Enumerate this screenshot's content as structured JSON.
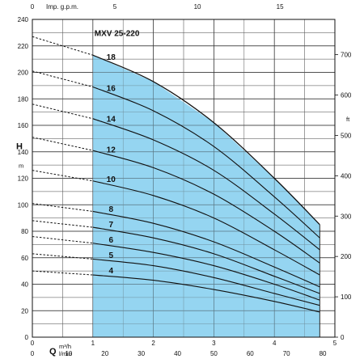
{
  "chart_data": {
    "type": "line",
    "title": "MXV 25-220",
    "x_flow_m3h": {
      "min": 0,
      "max": 5,
      "ticks": [
        0,
        1,
        2,
        3,
        4,
        5
      ]
    },
    "x_flow_lmin": {
      "ticks": [
        0,
        10,
        20,
        30,
        40,
        50,
        60,
        70,
        80
      ]
    },
    "x_flow_gpm": {
      "label": "Imp. g.p.m.",
      "ticks": [
        0,
        5,
        10,
        15
      ]
    },
    "y_head_m": {
      "label": "H",
      "unit": "m",
      "min": 0,
      "max": 240,
      "ticks": [
        0,
        20,
        40,
        60,
        80,
        100,
        120,
        140,
        160,
        180,
        200,
        220,
        240
      ]
    },
    "y_head_ft": {
      "label": "ft",
      "ticks": [
        0,
        100,
        200,
        300,
        400,
        500,
        600,
        700
      ]
    },
    "x_axis_label": "Q",
    "x_unit_m3h": "m³/h",
    "x_unit_lmin": "l/min",
    "operating_range_m3h": [
      1.0,
      4.75
    ],
    "operating_color": "#8fd3f0",
    "series": [
      {
        "name": "18",
        "shutoff": 227,
        "q": [
          1.0,
          2.0,
          3.0,
          4.0,
          4.75
        ],
        "h": [
          213,
          193,
          162,
          120,
          85
        ]
      },
      {
        "name": "16",
        "shutoff": 201,
        "q": [
          1.0,
          2.0,
          3.0,
          4.0,
          4.75
        ],
        "h": [
          189,
          171,
          144,
          106,
          75
        ]
      },
      {
        "name": "14",
        "shutoff": 176,
        "q": [
          1.0,
          2.0,
          3.0,
          4.0,
          4.75
        ],
        "h": [
          165,
          149,
          126,
          93,
          66
        ]
      },
      {
        "name": "12",
        "shutoff": 151,
        "q": [
          1.0,
          2.0,
          3.0,
          4.0,
          4.75
        ],
        "h": [
          141,
          128,
          108,
          80,
          56
        ]
      },
      {
        "name": "10",
        "shutoff": 126,
        "q": [
          1.0,
          2.0,
          3.0,
          4.0,
          4.75
        ],
        "h": [
          118,
          107,
          90,
          66,
          47
        ]
      },
      {
        "name": "8",
        "shutoff": 101,
        "q": [
          1.0,
          2.0,
          3.0,
          4.0,
          4.75
        ],
        "h": [
          95,
          86,
          72,
          53,
          38
        ]
      },
      {
        "name": "7",
        "shutoff": 88,
        "q": [
          1.0,
          2.0,
          3.0,
          4.0,
          4.75
        ],
        "h": [
          83,
          75,
          63,
          46,
          33
        ]
      },
      {
        "name": "6",
        "shutoff": 76,
        "q": [
          1.0,
          2.0,
          3.0,
          4.0,
          4.75
        ],
        "h": [
          71,
          64,
          54,
          40,
          28
        ]
      },
      {
        "name": "5",
        "shutoff": 63,
        "q": [
          1.0,
          2.0,
          3.0,
          4.0,
          4.75
        ],
        "h": [
          59,
          54,
          45,
          33,
          24
        ]
      },
      {
        "name": "4",
        "shutoff": 50,
        "q": [
          1.0,
          2.0,
          3.0,
          4.0,
          4.75
        ],
        "h": [
          47,
          43,
          36,
          27,
          19
        ]
      }
    ],
    "grid": true
  }
}
